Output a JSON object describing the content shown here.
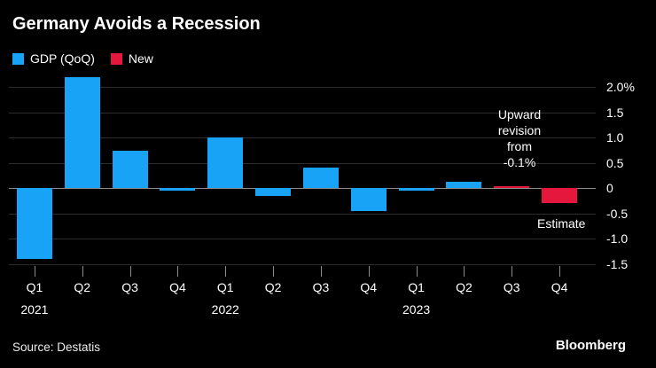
{
  "title": "Germany Avoids a Recession",
  "legend": [
    {
      "label": "GDP (QoQ)",
      "color": "#18a3f6"
    },
    {
      "label": "New",
      "color": "#e6173d"
    }
  ],
  "annotations": {
    "upward_revision": "Upward revision from -0.1%",
    "estimate": "Estimate"
  },
  "footer": {
    "source": "Source: Destatis",
    "brand": "Bloomberg"
  },
  "chart_data": {
    "type": "bar",
    "title": "Germany Avoids a Recession",
    "categories": [
      "Q1 2021",
      "Q2 2021",
      "Q3 2021",
      "Q4 2021",
      "Q1 2022",
      "Q2 2022",
      "Q3 2022",
      "Q4 2022",
      "Q1 2023",
      "Q2 2023",
      "Q3 2023",
      "Q4 2023"
    ],
    "x_ticks": [
      "Q1",
      "Q2",
      "Q3",
      "Q4",
      "Q1",
      "Q2",
      "Q3",
      "Q4",
      "Q1",
      "Q2",
      "Q3",
      "Q4"
    ],
    "year_labels": [
      {
        "index": 0,
        "label": "2021"
      },
      {
        "index": 4,
        "label": "2022"
      },
      {
        "index": 8,
        "label": "2023"
      }
    ],
    "values": [
      -1.4,
      2.2,
      0.75,
      -0.05,
      1.0,
      -0.15,
      0.4,
      -0.45,
      -0.05,
      0.12,
      0.02,
      -0.3
    ],
    "new_flags": [
      false,
      false,
      false,
      false,
      false,
      false,
      false,
      false,
      false,
      false,
      true,
      true
    ],
    "ylim": [
      -1.75,
      2.25
    ],
    "y_gridlines": [
      {
        "value": 2.0,
        "label": "2.0%"
      },
      {
        "value": 1.5,
        "label": "1.5"
      },
      {
        "value": 1.0,
        "label": "1.0"
      },
      {
        "value": 0.5,
        "label": "0.5"
      },
      {
        "value": 0,
        "label": "0"
      },
      {
        "value": -0.5,
        "label": "-0.5"
      },
      {
        "value": -1.0,
        "label": "-1.0"
      },
      {
        "value": -1.5,
        "label": "-1.5"
      }
    ],
    "grid": true,
    "legend_position": "top-left"
  }
}
